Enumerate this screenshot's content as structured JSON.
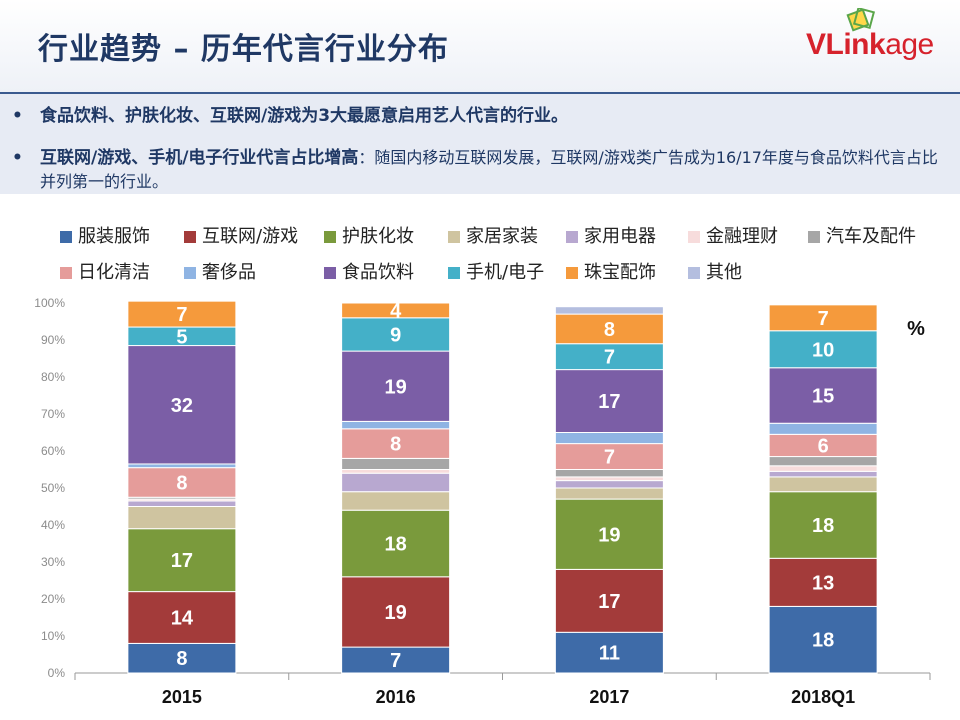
{
  "title": "行业趋势 – 历年代言行业分布",
  "logo": {
    "text_v": "V",
    "text_link": "Link",
    "text_age": "age"
  },
  "bullets": [
    {
      "marker": "•",
      "text": "食品饮料、护肤化妆、互联网/游戏为3大最愿意启用艺人代言的行业。"
    },
    {
      "marker": "•",
      "strong": "互联网/游戏、手机/电子行业代言占比增高",
      "normal": "：随国内移动互联网发展，互联网/游戏类广告成为16/17年度与食品饮料代言占比并列第一的行业。"
    }
  ],
  "colors": {
    "brand_red": "#d6222c",
    "title_blue": "#1f3864",
    "axis": "#7f7f7f"
  },
  "chart_data": {
    "type": "bar",
    "stacked": true,
    "unit_label": "%",
    "categories": [
      "2015",
      "2016",
      "2017",
      "2018Q1"
    ],
    "ylim": [
      0,
      100
    ],
    "yticks": [
      "0%",
      "10%",
      "20%",
      "30%",
      "40%",
      "50%",
      "60%",
      "70%",
      "80%",
      "90%",
      "100%"
    ],
    "series": [
      {
        "name": "服装服饰",
        "color": "#3e6ba8",
        "values": [
          8,
          7,
          11,
          18
        ],
        "labels": [
          "8",
          "7",
          "11",
          "18"
        ]
      },
      {
        "name": "互联网/游戏",
        "color": "#a33b3a",
        "values": [
          14,
          19,
          17,
          13
        ],
        "labels": [
          "14",
          "19",
          "17",
          "13"
        ]
      },
      {
        "name": "护肤化妆",
        "color": "#7a9a3c",
        "values": [
          17,
          18,
          19,
          18
        ],
        "labels": [
          "17",
          "18",
          "19",
          "18"
        ]
      },
      {
        "name": "家居家装",
        "color": "#cfc4a0",
        "values": [
          6,
          5,
          3,
          4
        ],
        "labels": [
          "",
          "",
          "",
          ""
        ]
      },
      {
        "name": "家用电器",
        "color": "#b8a8d0",
        "values": [
          1.5,
          5,
          2,
          1.5
        ],
        "labels": [
          "",
          "",
          "",
          ""
        ]
      },
      {
        "name": "金融理财",
        "color": "#f7dcdc",
        "values": [
          0.5,
          1,
          1,
          1.5
        ],
        "labels": [
          "",
          "",
          "",
          ""
        ]
      },
      {
        "name": "汽车及配件",
        "color": "#a6a6a6",
        "values": [
          0.5,
          3,
          2,
          2.5
        ],
        "labels": [
          "",
          "",
          "",
          ""
        ]
      },
      {
        "name": "日化清洁",
        "color": "#e59c9a",
        "values": [
          8,
          8,
          7,
          6
        ],
        "labels": [
          "8",
          "8",
          "7",
          "6"
        ]
      },
      {
        "name": "奢侈品",
        "color": "#8fb4e3",
        "values": [
          1,
          2,
          3,
          3
        ],
        "labels": [
          "",
          "",
          "",
          ""
        ]
      },
      {
        "name": "食品饮料",
        "color": "#7b5ea6",
        "values": [
          32,
          19,
          17,
          15
        ],
        "labels": [
          "32",
          "19",
          "17",
          "15"
        ]
      },
      {
        "name": "手机/电子",
        "color": "#44b0c8",
        "values": [
          5,
          9,
          7,
          10
        ],
        "labels": [
          "5",
          "9",
          "7",
          "10"
        ]
      },
      {
        "name": "珠宝配饰",
        "color": "#f59a3c",
        "values": [
          7,
          4,
          8,
          7
        ],
        "labels": [
          "7",
          "4",
          "8",
          "7"
        ]
      },
      {
        "name": "其他",
        "color": "#b4bedf",
        "values": [
          0,
          0,
          2,
          0
        ],
        "labels": [
          "",
          "",
          "",
          ""
        ]
      }
    ]
  }
}
